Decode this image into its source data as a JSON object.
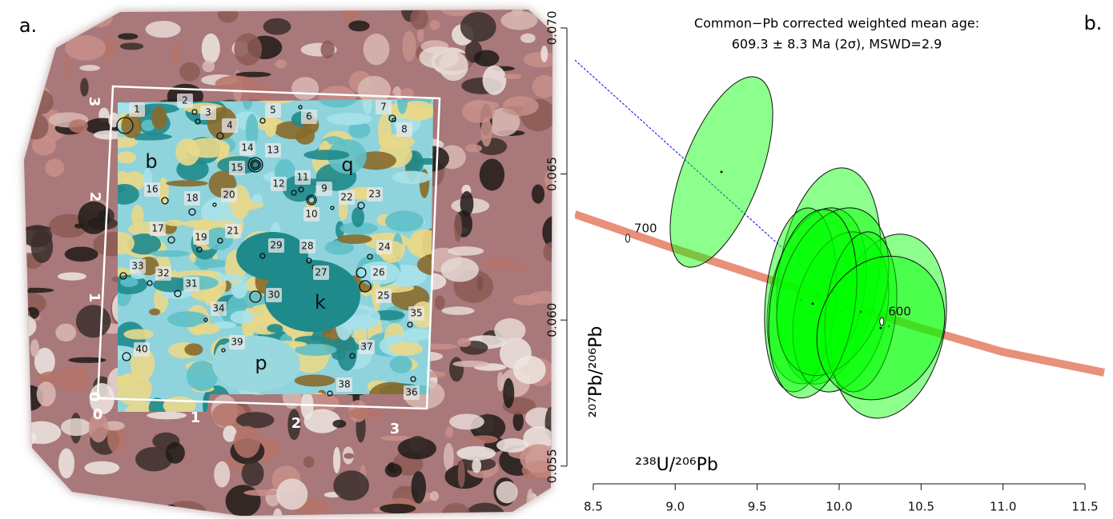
{
  "panel_a": {
    "label": "a.",
    "spot_labels": [
      "1",
      "2",
      "3",
      "4",
      "5",
      "6",
      "7",
      "8",
      "9",
      "10",
      "11",
      "12",
      "13",
      "14",
      "15",
      "16",
      "17",
      "18",
      "19",
      "20",
      "21",
      "22",
      "23",
      "24",
      "25",
      "26",
      "27",
      "28",
      "29",
      "30",
      "31",
      "32",
      "33",
      "34",
      "35",
      "36",
      "37",
      "38",
      "39",
      "40"
    ],
    "phase_labels": [
      "b",
      "q",
      "k",
      "p"
    ],
    "y_ticks": [
      "0",
      "1",
      "2",
      "3"
    ],
    "x_ticks": [
      "0",
      "1",
      "2",
      "3"
    ]
  },
  "chart_data": {
    "type": "ellipse",
    "panel_label": "b.",
    "title": "Common−Pb corrected weighted mean age:",
    "subtitle": "609.3 ± 8.3 Ma (2σ), MSWD=2.9",
    "x_label": "²³⁸U/²⁰⁶Pb",
    "y_label": "²⁰⁷Pb/²⁰⁶Pb",
    "xlim": [
      8.388,
      11.622
    ],
    "ylim": [
      0.05453,
      0.07082
    ],
    "xticks": [
      8.5,
      {
        "value": 9,
        "label": "9.0"
      },
      9.5,
      {
        "value": 10,
        "label": "10.0"
      },
      10.5,
      {
        "value": 11,
        "label": "11.0"
      },
      11.5
    ],
    "yticks": [
      0.055,
      {
        "value": 0.06,
        "label": "0.060"
      },
      0.065,
      {
        "value": 0.07,
        "label": "0.070"
      }
    ],
    "color": "#00ff00",
    "x": [
      9.282,
      9.936,
      10.303,
      9.863,
      9.765,
      10.01,
      9.961,
      10.132,
      9.839,
      10.254
    ],
    "y": [
      0.06507,
      0.06151,
      0.05979,
      0.06083,
      0.06069,
      0.06028,
      0.06097,
      0.06028,
      0.06056,
      0.05973
    ],
    "x_err": [
      0.313,
      0.318,
      0.352,
      0.303,
      0.22,
      0.293,
      0.342,
      0.22,
      0.269,
      0.39
    ],
    "y_err": [
      0.00326,
      0.0037,
      0.00315,
      0.00301,
      0.00315,
      0.00274,
      0.00287,
      0.00274,
      0.00323,
      0.00246
    ],
    "rho": [
      0.6,
      0.25,
      0.2,
      0.3,
      0.2,
      0.25,
      0.3,
      0.2,
      0.25,
      0.15
    ],
    "concordia": {
      "color": "#e8907a",
      "x": [
        8.388,
        9.008,
        9.506,
        10.0,
        10.494,
        10.997,
        11.617
      ],
      "y": [
        0.06362,
        0.06242,
        0.06151,
        0.06061,
        0.05973,
        0.05891,
        0.0582
      ]
    },
    "concordia_ages": [
      {
        "age": 700,
        "x": 8.71,
        "y": 0.0628
      },
      {
        "age": 600,
        "x": 10.26,
        "y": 0.05995
      }
    ],
    "discordia": {
      "color": "#0000ff",
      "x": [
        8.388,
        10.1
      ],
      "y": [
        0.0689,
        0.0602
      ]
    }
  }
}
